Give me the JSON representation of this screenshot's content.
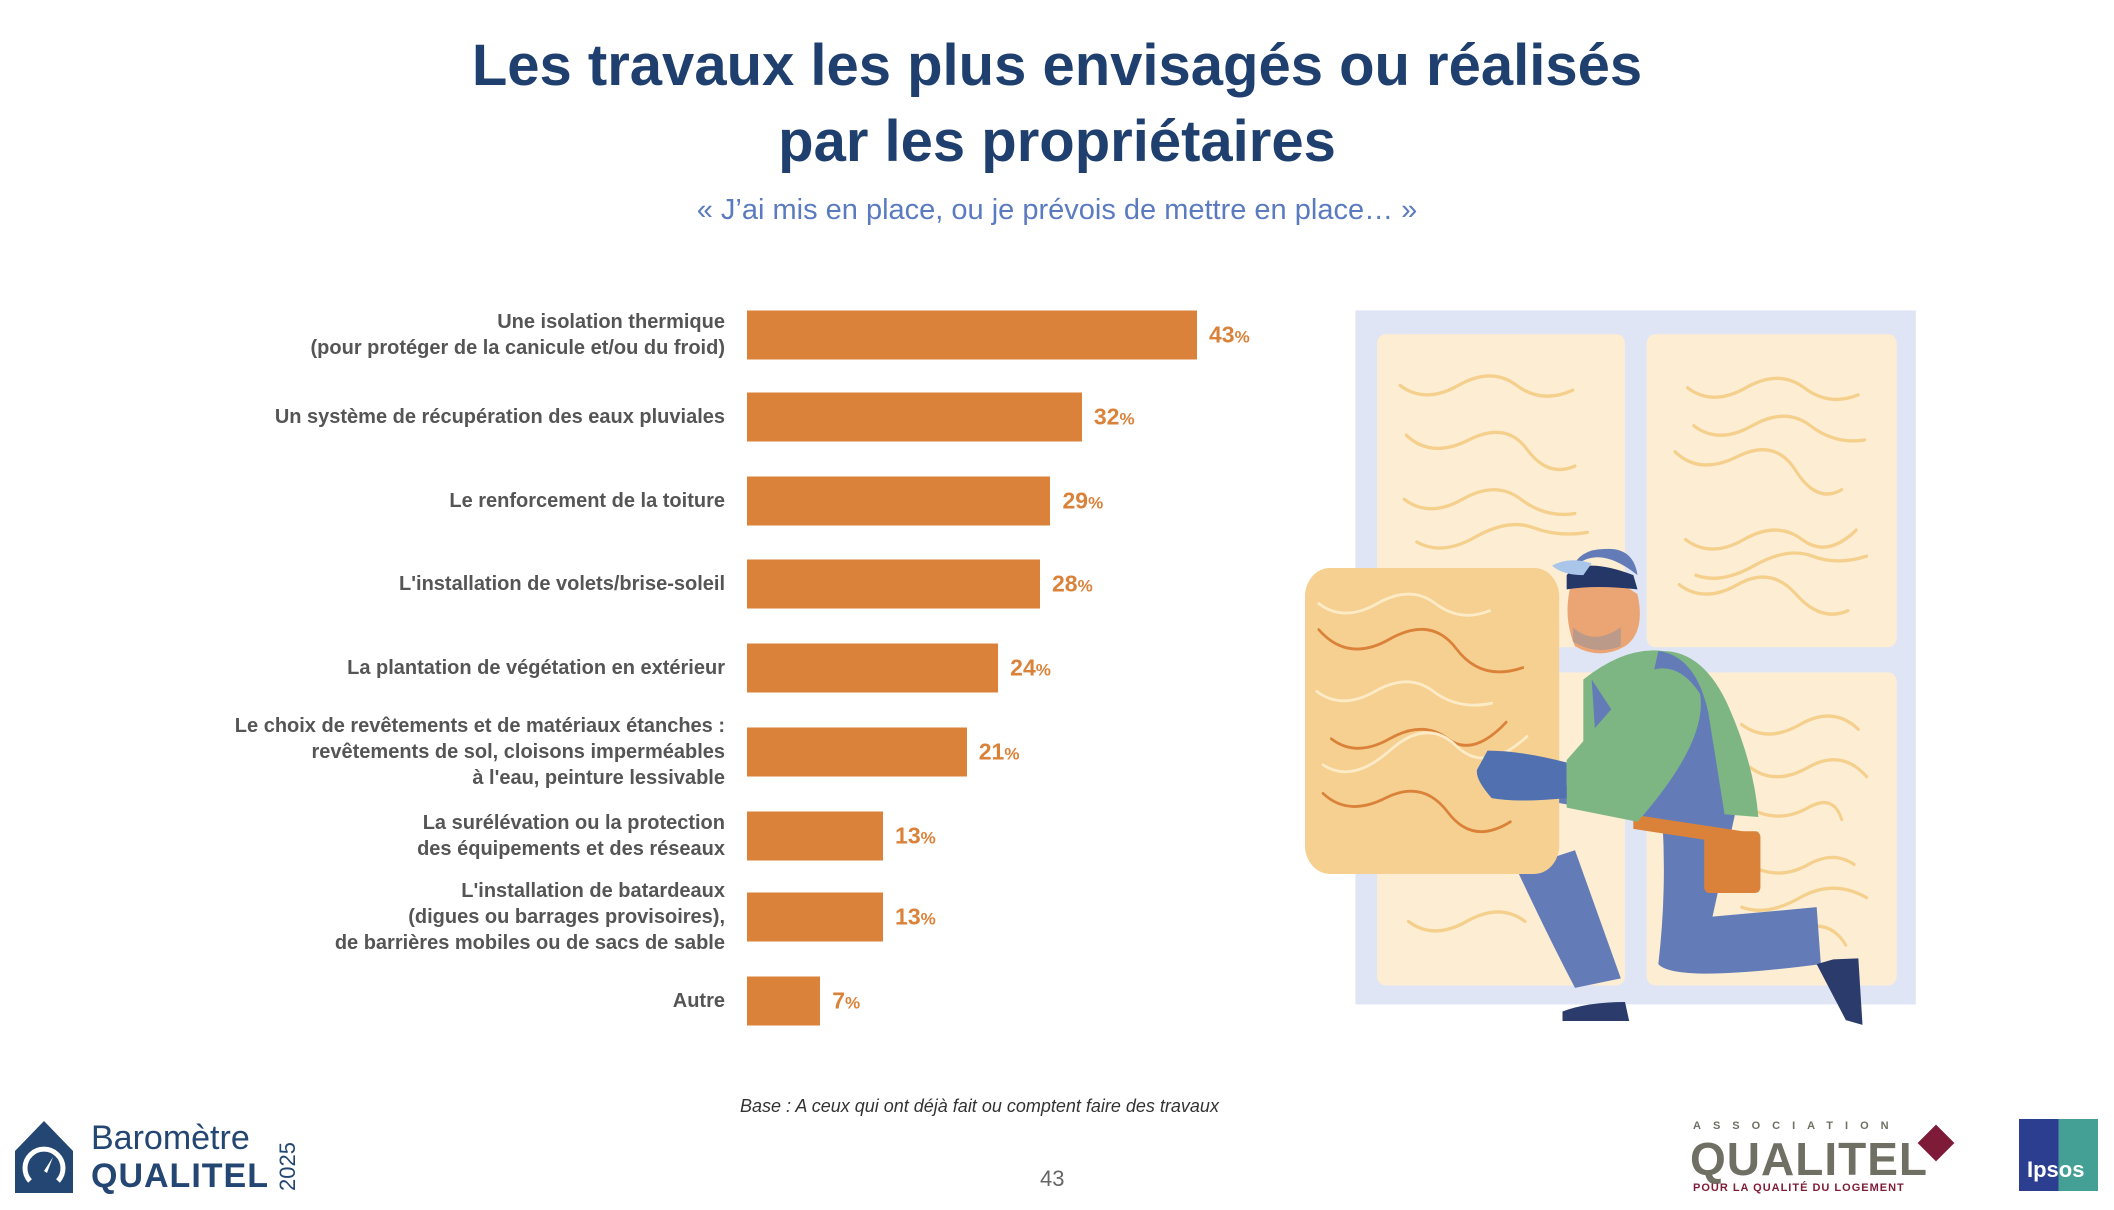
{
  "title_lines": [
    "Les travaux les plus envisagés ou réalisés",
    "par les propriétaires"
  ],
  "subtitle": "« J’ai mis en place, ou je prévois de mettre en place… »",
  "chart_data": {
    "type": "bar",
    "orientation": "horizontal",
    "title": "Les travaux les plus envisagés ou réalisés par les propriétaires",
    "unit": "%",
    "categories": [
      [
        "Une isolation thermique",
        "(pour protéger de la canicule et/ou du froid)"
      ],
      [
        "Un système de récupération des eaux pluviales"
      ],
      [
        "Le renforcement de la toiture"
      ],
      [
        "L'installation de volets/brise-soleil"
      ],
      [
        "La plantation de végétation en extérieur"
      ],
      [
        "Le choix de revêtements et de matériaux étanches :",
        "revêtements de sol, cloisons imperméables",
        "à l'eau, peinture lessivable"
      ],
      [
        "La surélévation ou la protection",
        "des équipements et des réseaux"
      ],
      [
        "L'installation de batardeaux",
        "(digues ou barrages provisoires),",
        "de barrières mobiles ou de sacs de sable"
      ],
      [
        "Autre"
      ]
    ],
    "values": [
      43,
      32,
      29,
      28,
      24,
      21,
      13,
      13,
      7
    ],
    "xlim": [
      0,
      43
    ],
    "bar_color": "#db823a",
    "grid": false
  },
  "footnote": "Base : A ceux qui ont déjà fait ou comptent faire des travaux",
  "page_number": "43",
  "logos": {
    "barometre_line1": "Baromètre",
    "barometre_line2": "QUALITEL",
    "barometre_year": "2025",
    "association_top": "ASSOCIATION",
    "association_name": "QUALITEL",
    "association_tagline": "POUR LA QUALITÉ DU LOGEMENT",
    "ipsos": "Ipsos"
  },
  "colors": {
    "title": "#1f3f6e",
    "subtitle": "#5b7bc0",
    "bar": "#db823a"
  }
}
